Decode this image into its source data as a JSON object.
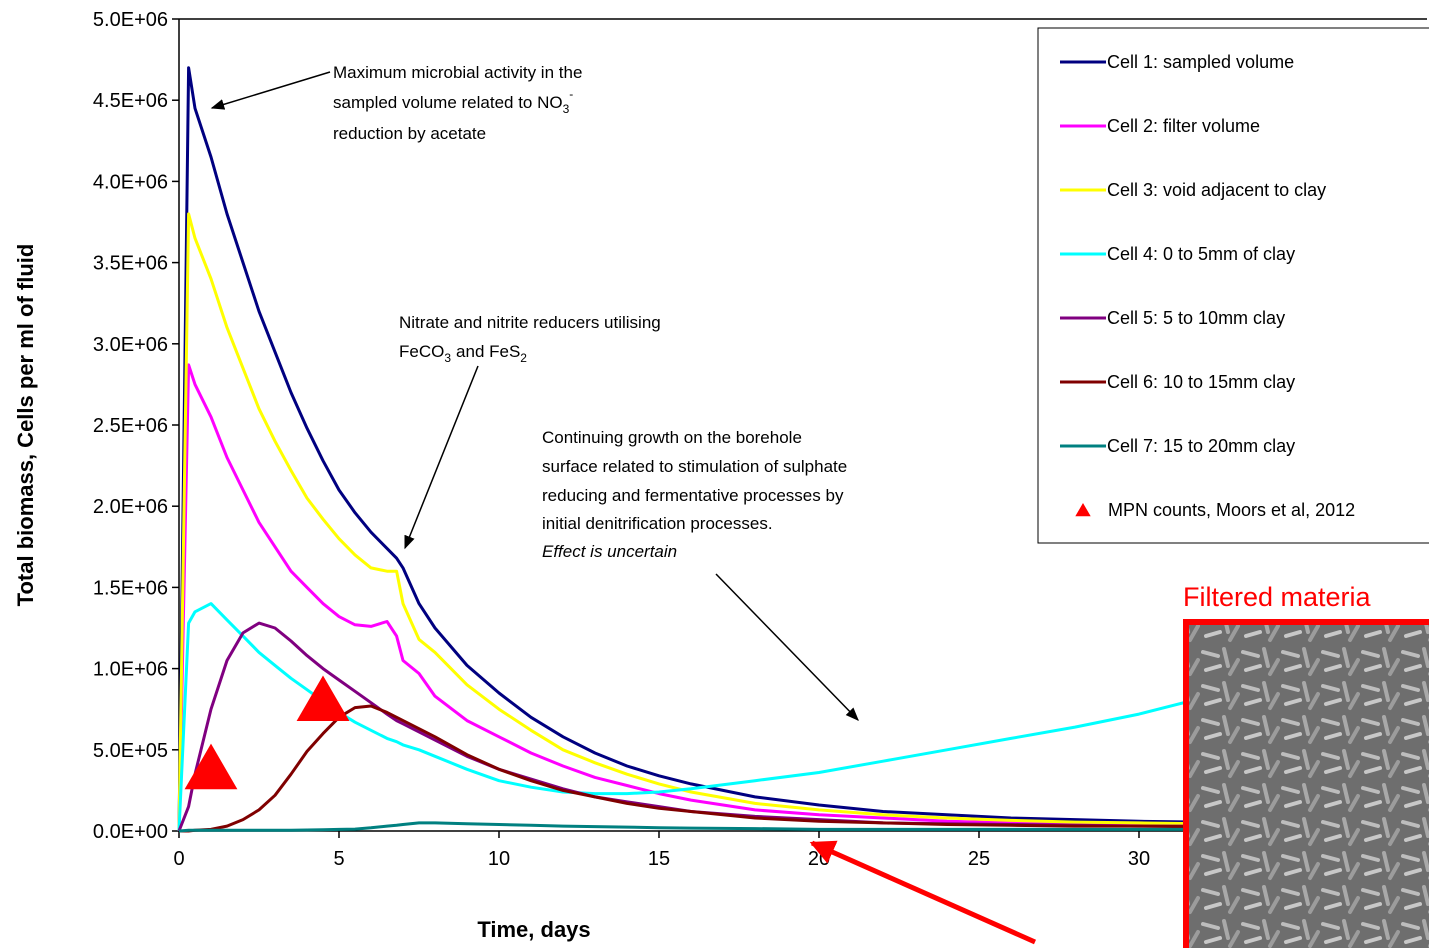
{
  "chart_data": {
    "type": "line",
    "xlabel": "Time, days",
    "ylabel": "Total biomass, Cells per ml of fluid",
    "xlim": [
      0,
      39
    ],
    "ylim": [
      0,
      5000000
    ],
    "xticks": [
      0,
      5,
      10,
      15,
      20,
      25,
      30
    ],
    "yticks": [
      {
        "value": 0,
        "label": "0.0E+00"
      },
      {
        "value": 500000,
        "label": "5.0E+05"
      },
      {
        "value": 1000000,
        "label": "1.0E+06"
      },
      {
        "value": 1500000,
        "label": "1.5E+06"
      },
      {
        "value": 2000000,
        "label": "2.0E+06"
      },
      {
        "value": 2500000,
        "label": "2.5E+06"
      },
      {
        "value": 3000000,
        "label": "3.0E+06"
      },
      {
        "value": 3500000,
        "label": "3.5E+06"
      },
      {
        "value": 4000000,
        "label": "4.0E+06"
      },
      {
        "value": 4500000,
        "label": "4.5E+06"
      },
      {
        "value": 5000000,
        "label": "5.0E+06"
      }
    ],
    "legend": "upper right",
    "x": [
      0,
      0.3,
      0.5,
      1,
      1.5,
      2,
      2.5,
      3,
      3.5,
      4,
      4.5,
      5,
      5.5,
      6,
      6.5,
      6.8,
      7,
      7.5,
      8,
      9,
      10,
      11,
      12,
      13,
      14,
      15,
      16,
      18,
      20,
      22,
      24,
      26,
      28,
      30,
      32,
      35,
      39
    ],
    "series": [
      {
        "name": "Cell 1: sampled volume",
        "color": "#000080",
        "values": [
          0,
          4700000.0,
          4450000.0,
          4150000.0,
          3800000.0,
          3500000.0,
          3200000.0,
          2950000.0,
          2700000.0,
          2480000.0,
          2280000.0,
          2100000.0,
          1960000.0,
          1840000.0,
          1740000.0,
          1680000.0,
          1620000.0,
          1400000.0,
          1250000.0,
          1020000.0,
          850000.0,
          700000.0,
          580000.0,
          480000.0,
          400000.0,
          340000.0,
          290000.0,
          210000.0,
          160000.0,
          120000.0,
          100000.0,
          80000.0,
          70000.0,
          60000.0,
          55000.0,
          50000.0,
          45000.0
        ]
      },
      {
        "name": "Cell 2: filter volume",
        "color": "#ff00ff",
        "values": [
          0,
          2870000.0,
          2750000.0,
          2550000.0,
          2300000.0,
          2100000.0,
          1900000.0,
          1750000.0,
          1600000.0,
          1500000.0,
          1400000.0,
          1320000.0,
          1270000.0,
          1260000.0,
          1290000.0,
          1200000.0,
          1050000.0,
          970000.0,
          830000.0,
          680000.0,
          580000.0,
          480000.0,
          400000.0,
          330000.0,
          280000.0,
          230000.0,
          190000.0,
          130000.0,
          100000.0,
          80000.0,
          60000.0,
          50000.0,
          45000.0,
          40000.0,
          40000.0,
          35000.0,
          30000.0
        ]
      },
      {
        "name": "Cell 3: void adjacent to clay",
        "color": "#ffff00",
        "values": [
          0,
          3800000.0,
          3650000.0,
          3400000.0,
          3100000.0,
          2850000.0,
          2600000.0,
          2400000.0,
          2220000.0,
          2050000.0,
          1920000.0,
          1800000.0,
          1700000.0,
          1620000.0,
          1600000.0,
          1600000.0,
          1400000.0,
          1180000.0,
          1100000.0,
          900000.0,
          750000.0,
          620000.0,
          500000.0,
          420000.0,
          350000.0,
          290000.0,
          240000.0,
          170000.0,
          130000.0,
          100000.0,
          80000.0,
          65000.0,
          55000.0,
          50000.0,
          45000.0,
          40000.0,
          40000.0
        ]
      },
      {
        "name": "Cell 4: 0 to 5mm of clay",
        "color": "#00ffff",
        "values": [
          0,
          1280000.0,
          1350000.0,
          1400000.0,
          1300000.0,
          1200000.0,
          1100000.0,
          1020000.0,
          940000.0,
          870000.0,
          800000.0,
          730000.0,
          670000.0,
          620000.0,
          570000.0,
          550000.0,
          530000.0,
          500000.0,
          460000.0,
          380000.0,
          310000.0,
          270000.0,
          240000.0,
          230000.0,
          230000.0,
          240000.0,
          260000.0,
          310000.0,
          360000.0,
          430000.0,
          500000.0,
          570000.0,
          640000.0,
          720000.0,
          820000.0,
          950000.0,
          1100000.0
        ]
      },
      {
        "name": "Cell 5: 5 to 10mm clay",
        "color": "#800080",
        "values": [
          0,
          150000.0,
          350000.0,
          750000.0,
          1050000.0,
          1220000.0,
          1280000.0,
          1250000.0,
          1170000.0,
          1080000.0,
          1000000.0,
          930000.0,
          860000.0,
          790000.0,
          720000.0,
          680000.0,
          660000.0,
          610000.0,
          560000.0,
          460000.0,
          380000.0,
          320000.0,
          260000.0,
          210000.0,
          180000.0,
          150000.0,
          120000.0,
          90000.0,
          70000.0,
          50000.0,
          45000.0,
          40000.0,
          35000.0,
          30000.0,
          30000.0,
          25000.0,
          20000.0
        ]
      },
      {
        "name": "Cell 6: 10 to 15mm clay",
        "color": "#800000",
        "values": [
          0,
          0,
          5000.0,
          10000.0,
          30000.0,
          70000.0,
          130000.0,
          220000.0,
          350000.0,
          490000.0,
          600000.0,
          700000.0,
          760000.0,
          770000.0,
          730000.0,
          700000.0,
          680000.0,
          630000.0,
          580000.0,
          470000.0,
          380000.0,
          310000.0,
          250000.0,
          210000.0,
          170000.0,
          140000.0,
          120000.0,
          80000.0,
          60000.0,
          50000.0,
          40000.0,
          35000.0,
          30000.0,
          30000.0,
          25000.0,
          20000.0,
          20000.0
        ]
      },
      {
        "name": "Cell 7: 15 to 20mm clay",
        "color": "#008080",
        "values": [
          0,
          5000.0,
          5000.0,
          5000.0,
          5000.0,
          5000.0,
          5000.0,
          5000.0,
          5000.0,
          6000.0,
          8000.0,
          10000.0,
          12000.0,
          20000.0,
          30000.0,
          35000.0,
          40000.0,
          50000.0,
          50000.0,
          45000.0,
          40000.0,
          35000.0,
          30000.0,
          27000.0,
          24000.0,
          20000.0,
          18000.0,
          15000.0,
          10000.0,
          10000.0,
          10000.0,
          10000.0,
          10000.0,
          10000.0,
          10000.0,
          10000.0,
          10000.0
        ]
      },
      {
        "name": "MPN counts, Moors et al, 2012",
        "color": "#ff0000",
        "marker": "triangle",
        "x": [
          1,
          4.5
        ],
        "values": [
          390000,
          810000
        ]
      }
    ],
    "annotations": [
      {
        "lines": [
          "Maximum microbial activity in the",
          "sampled volume related to NO",
          "3",
          "-",
          "reduction by acetate"
        ]
      },
      {
        "lines": [
          "Nitrate and nitrite reducers utilising",
          "FeCO",
          "3",
          "and FeS",
          "2"
        ]
      },
      {
        "lines": [
          "Continuing growth on the borehole",
          "surface related to stimulation of sulphate",
          "reducing and fermentative processes by",
          "initial denitrification processes.",
          "Effect is uncertain"
        ]
      }
    ],
    "inset_title": "Filtered materia"
  }
}
